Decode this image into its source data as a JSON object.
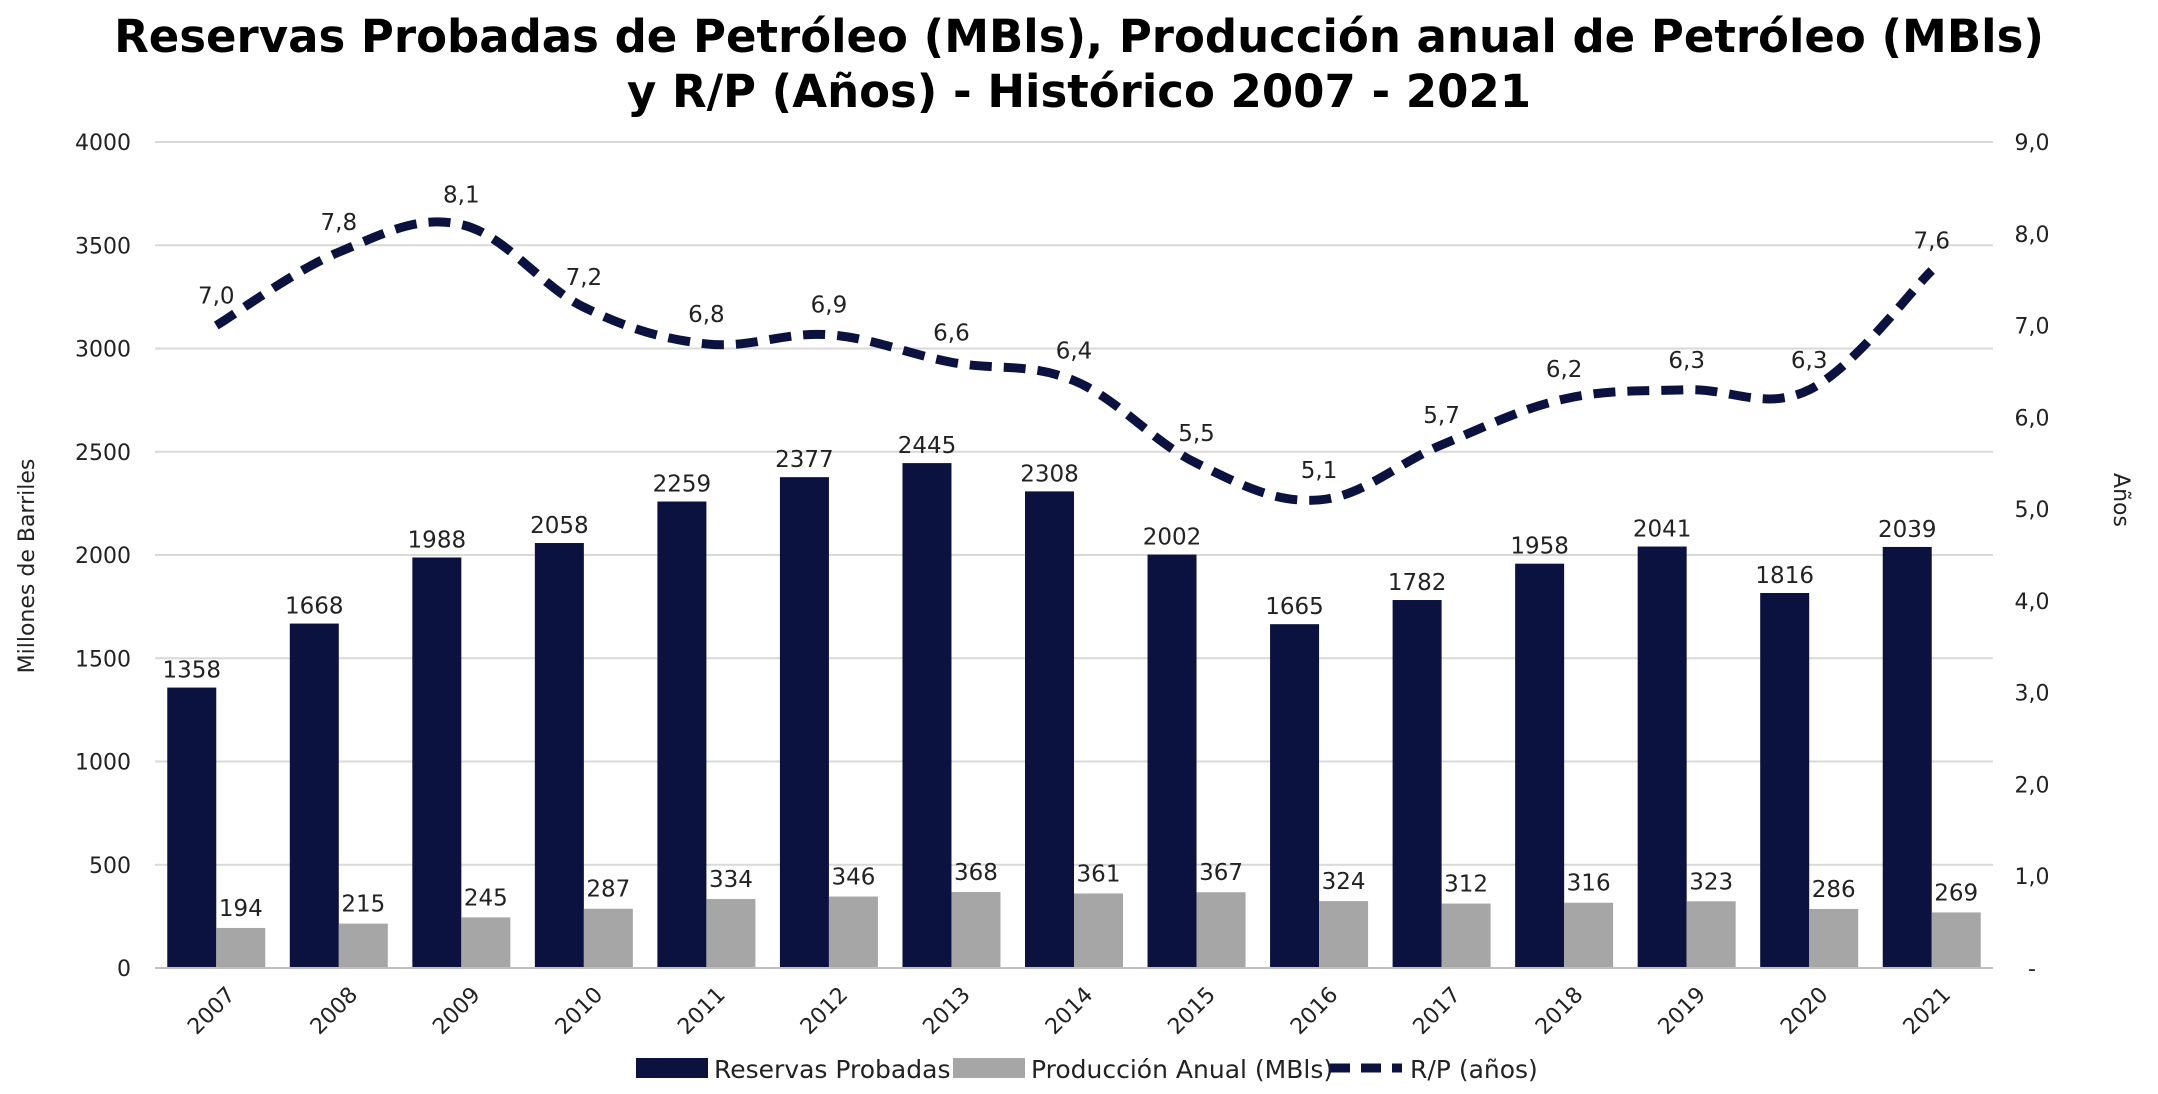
{
  "chart_data": {
    "type": "bar",
    "title": [
      "Reservas Probadas de Petróleo (MBls), Producción anual de Petróleo (MBls)",
      "y R/P (Años) - Histórico 2007 - 2021"
    ],
    "categories": [
      "2007",
      "2008",
      "2009",
      "2010",
      "2011",
      "2012",
      "2013",
      "2014",
      "2015",
      "2016",
      "2017",
      "2018",
      "2019",
      "2020",
      "2021"
    ],
    "series": [
      {
        "name": "Reservas Probadas",
        "type": "bar",
        "axis": "left",
        "color": "#0b1240",
        "values": [
          1358,
          1668,
          1988,
          2058,
          2259,
          2377,
          2445,
          2308,
          2002,
          1665,
          1782,
          1958,
          2041,
          1816,
          2039
        ],
        "labels": [
          "1358",
          "1668",
          "1988",
          "2058",
          "2259",
          "2377",
          "2445",
          "2308",
          "2002",
          "1665",
          "1782",
          "1958",
          "2041",
          "1816",
          "2039"
        ]
      },
      {
        "name": "Producción Anual (MBls)",
        "type": "bar",
        "axis": "left",
        "color": "#a6a6a6",
        "values": [
          194,
          215,
          245,
          287,
          334,
          346,
          368,
          361,
          367,
          324,
          312,
          316,
          323,
          286,
          269
        ],
        "labels": [
          "194",
          "215",
          "245",
          "287",
          "334",
          "346",
          "368",
          "361",
          "367",
          "324",
          "312",
          "316",
          "323",
          "286",
          "269"
        ]
      },
      {
        "name": "R/P (años)",
        "type": "line",
        "style": "dashed",
        "axis": "right",
        "color": "#0b1240",
        "values": [
          7.0,
          7.8,
          8.1,
          7.2,
          6.8,
          6.9,
          6.6,
          6.4,
          5.5,
          5.1,
          5.7,
          6.2,
          6.3,
          6.3,
          7.6
        ],
        "labels": [
          "7,0",
          "7,8",
          "8,1",
          "7,2",
          "6,8",
          "6,9",
          "6,6",
          "6,4",
          "5,5",
          "5,1",
          "5,7",
          "6,2",
          "6,3",
          "6,3",
          "7,6"
        ]
      }
    ],
    "ylabel": "Millones de Barriles",
    "ylim": [
      0,
      4000
    ],
    "yticks": [
      "0",
      "500",
      "1000",
      "1500",
      "2000",
      "2500",
      "3000",
      "3500",
      "4000"
    ],
    "y2label": "Años",
    "y2lim": [
      0,
      9
    ],
    "y2ticks": [
      "-",
      "1,0",
      "2,0",
      "3,0",
      "4,0",
      "5,0",
      "6,0",
      "7,0",
      "8,0",
      "9,0"
    ],
    "grid": true,
    "legend_position": "bottom",
    "legend": [
      "Reservas Probadas",
      "Producción Anual (MBls)",
      "R/P (años)"
    ]
  }
}
